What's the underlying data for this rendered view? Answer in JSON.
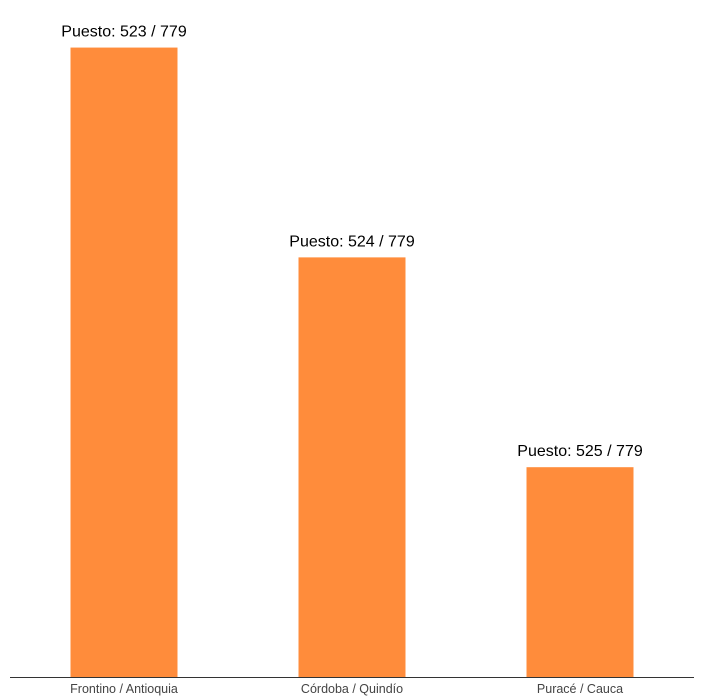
{
  "chart_data": {
    "type": "bar",
    "categories": [
      "Frontino / Antioquia",
      "Córdoba / Quindío",
      "Puracé / Cauca"
    ],
    "values": [
      3,
      2,
      1
    ],
    "data_labels": [
      "Puesto: 523 / 779",
      "Puesto: 524 / 779",
      "Puesto: 525 / 779"
    ],
    "title": "",
    "xlabel": "",
    "ylabel": "",
    "ylim": [
      0,
      3.16
    ],
    "grid": false,
    "legend": "none",
    "colors": {
      "bar": "#FF8C3B",
      "axis": "#333333",
      "tick_label": "#444444",
      "data_label": "#000000"
    }
  }
}
